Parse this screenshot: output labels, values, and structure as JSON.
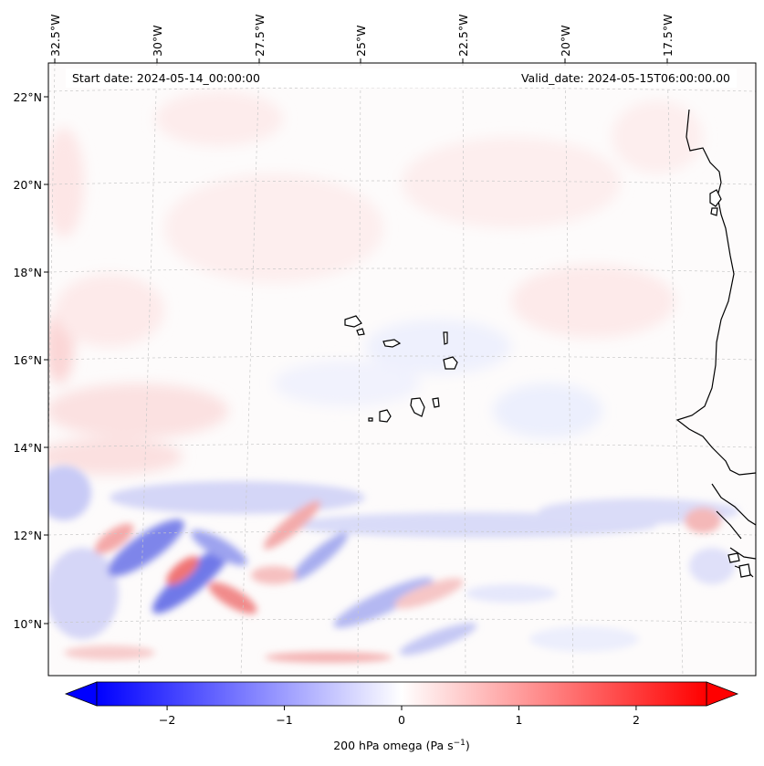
{
  "map": {
    "start_date": "Start date: 2024-05-14_00:00:00",
    "valid_date": "Valid_date: 2024-05-15T06:00:00.00",
    "lat_labels": [
      "22°N",
      "20°N",
      "18°N",
      "16°N",
      "14°N",
      "12°N",
      "10°N"
    ],
    "lon_labels": [
      "32.5°W",
      "30°W",
      "27.5°W",
      "25°W",
      "22.5°W",
      "20°W",
      "17.5°W"
    ]
  },
  "colorbar": {
    "label_main": "200 hPa omega (Pa s",
    "label_sup": "−1",
    "label_end": ")",
    "ticks": [
      "−2",
      "−1",
      "0",
      "1",
      "2"
    ],
    "range": [
      -2.6,
      2.6
    ],
    "tick_values": [
      -2,
      -1,
      0,
      1,
      2
    ]
  },
  "colors": {
    "negative": "#0000ff",
    "positive": "#ff0000",
    "neutral": "#ffffff",
    "coastline": "#000000"
  }
}
